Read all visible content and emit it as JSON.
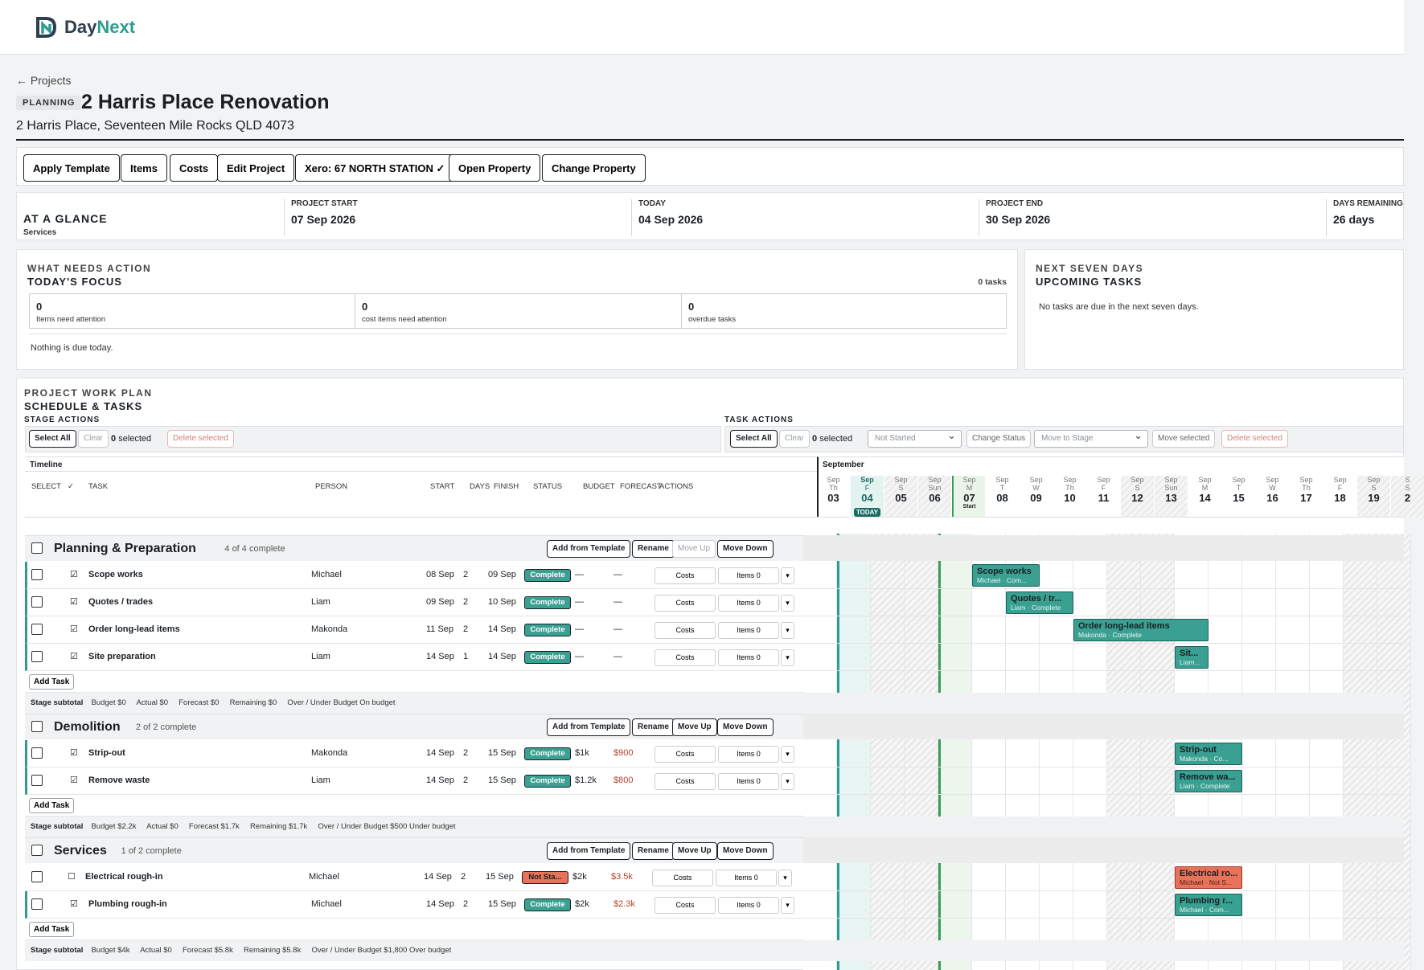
{
  "brand": {
    "name_a": "Day",
    "name_b": "Next"
  },
  "breadcrumb": "← Projects",
  "project": {
    "status_badge": "PLANNING",
    "title": "2 Harris Place Renovation",
    "address": "2 Harris Place, Seventeen Mile Rocks QLD 4073"
  },
  "toolbar": {
    "apply_template": "Apply Template",
    "items": "Items",
    "costs": "Costs",
    "edit_project": "Edit Project",
    "xero": "Xero: 67 NORTH STATION ✓",
    "open_property": "Open Property",
    "change_property": "Change Property"
  },
  "glance": {
    "title": "AT A GLANCE",
    "subtitle": "Services",
    "start_label": "PROJECT START",
    "start_value": "07 Sep 2026",
    "today_label": "TODAY",
    "today_value": "04 Sep 2026",
    "end_label": "PROJECT END",
    "end_value": "30 Sep 2026",
    "remaining_label": "DAYS REMAINING",
    "remaining_value": "26 days"
  },
  "focus": {
    "eyebrow": "WHAT NEEDS ACTION",
    "title": "TODAY'S FOCUS",
    "count": "0 tasks",
    "stat1_value": "0",
    "stat1_label": "Items need attention",
    "stat2_value": "0",
    "stat2_label": "cost items need attention",
    "stat3_value": "0",
    "stat3_label": "overdue tasks",
    "empty": "Nothing is due today."
  },
  "upcoming": {
    "eyebrow": "NEXT SEVEN DAYS",
    "title": "UPCOMING TASKS",
    "empty": "No tasks are due in the next seven days."
  },
  "plan": {
    "eyebrow": "PROJECT WORK PLAN",
    "title": "SCHEDULE & TASKS",
    "stage_actions": "STAGE ACTIONS",
    "task_actions": "TASK ACTIONS",
    "select_all": "Select All",
    "clear": "Clear",
    "selected_count": "0",
    "selected_word": "selected",
    "delete_selected": "Delete selected",
    "status_select": "Not Started",
    "change_status": "Change Status",
    "stage_select": "Move to Stage",
    "move_selected": "Move selected"
  },
  "table_headers": {
    "timeline": "Timeline",
    "select": "SELECT",
    "check": "✓",
    "task": "TASK",
    "person": "PERSON",
    "start": "START",
    "days": "DAYS",
    "finish": "FINISH",
    "status": "STATUS",
    "budget": "BUDGET",
    "forecast": "FORECAST",
    "actions": "ACTIONS"
  },
  "timeline": {
    "month": "September",
    "days": [
      {
        "m": "Sep",
        "w": "Th",
        "d": "03"
      },
      {
        "m": "Sep",
        "w": "F",
        "d": "04",
        "tag": "TODAY"
      },
      {
        "m": "Sep",
        "w": "S",
        "d": "05"
      },
      {
        "m": "Sep",
        "w": "Sun",
        "d": "06"
      },
      {
        "m": "Sep",
        "w": "M",
        "d": "07",
        "tag": "Start"
      },
      {
        "m": "Sep",
        "w": "T",
        "d": "08"
      },
      {
        "m": "Sep",
        "w": "W",
        "d": "09"
      },
      {
        "m": "Sep",
        "w": "Th",
        "d": "10"
      },
      {
        "m": "Sep",
        "w": "F",
        "d": "11"
      },
      {
        "m": "Sep",
        "w": "S",
        "d": "12"
      },
      {
        "m": "Sep",
        "w": "Sun",
        "d": "13"
      },
      {
        "m": "Sep",
        "w": "M",
        "d": "14"
      },
      {
        "m": "Sep",
        "w": "T",
        "d": "15"
      },
      {
        "m": "Sep",
        "w": "W",
        "d": "16"
      },
      {
        "m": "Sep",
        "w": "Th",
        "d": "17"
      },
      {
        "m": "Sep",
        "w": "F",
        "d": "18"
      },
      {
        "m": "Sep",
        "w": "S",
        "d": "19"
      },
      {
        "m": "S",
        "w": "S",
        "d": "2"
      }
    ]
  },
  "buttons": {
    "add_from_template": "Add from Template",
    "rename": "Rename",
    "move_up": "Move Up",
    "move_down": "Move Down",
    "add_task": "Add Task",
    "costs": "Costs",
    "items": "Items 0",
    "more": "▾"
  },
  "stages": [
    {
      "name": "Planning & Preparation",
      "progress": "4 of 4 complete",
      "subtotal": {
        "label": "Stage subtotal",
        "text": "Budget $0     Actual $0     Forecast $0     Remaining $0     Over / Under Budget On budget"
      },
      "tasks": [
        {
          "name": "Scope works",
          "person": "Michael",
          "start": "08 Sep",
          "days": "2",
          "finish": "09 Sep",
          "status": "Complete",
          "budget": "—",
          "forecast": "—",
          "bar_title": "Scope works",
          "bar_sub": "Michael · Com..."
        },
        {
          "name": "Quotes / trades",
          "person": "Liam",
          "start": "09 Sep",
          "days": "2",
          "finish": "10 Sep",
          "status": "Complete",
          "budget": "—",
          "forecast": "—",
          "bar_title": "Quotes / tr...",
          "bar_sub": "Liam · Complete"
        },
        {
          "name": "Order long-lead items",
          "person": "Makonda",
          "start": "11 Sep",
          "days": "2",
          "finish": "14 Sep",
          "status": "Complete",
          "budget": "—",
          "forecast": "—",
          "bar_title": "Order long-lead items",
          "bar_sub": "Makonda · Complete"
        },
        {
          "name": "Site preparation",
          "person": "Liam",
          "start": "14 Sep",
          "days": "1",
          "finish": "14 Sep",
          "status": "Complete",
          "budget": "—",
          "forecast": "—",
          "bar_title": "Sit...",
          "bar_sub": "Liam..."
        }
      ]
    },
    {
      "name": "Demolition",
      "progress": "2 of 2 complete",
      "subtotal": {
        "label": "Stage subtotal",
        "text": "Budget $2.2k     Actual $0     Forecast $1.7k     Remaining $1.7k     Over / Under Budget $500 Under budget"
      },
      "tasks": [
        {
          "name": "Strip-out",
          "person": "Makonda",
          "start": "14 Sep",
          "days": "2",
          "finish": "15 Sep",
          "status": "Complete",
          "budget": "$1k",
          "forecast": "$900",
          "bar_title": "Strip-out",
          "bar_sub": "Makonda · Co..."
        },
        {
          "name": "Remove waste",
          "person": "Liam",
          "start": "14 Sep",
          "days": "2",
          "finish": "15 Sep",
          "status": "Complete",
          "budget": "$1.2k",
          "forecast": "$800",
          "bar_title": "Remove wa...",
          "bar_sub": "Liam · Complete"
        }
      ]
    },
    {
      "name": "Services",
      "progress": "1 of 2 complete",
      "subtotal": {
        "label": "Stage subtotal",
        "text": "Budget $4k     Actual $0     Forecast $5.8k     Remaining $5.8k     Over / Under Budget $1,800 Over budget"
      },
      "tasks": [
        {
          "name": "Electrical rough-in",
          "person": "Michael",
          "start": "14 Sep",
          "days": "2",
          "finish": "15 Sep",
          "status": "Not Sta...",
          "budget": "$2k",
          "forecast": "$3.5k",
          "bar_title": "Electrical ro...",
          "bar_sub": "Michael · Not S..."
        },
        {
          "name": "Plumbing rough-in",
          "person": "Michael",
          "start": "14 Sep",
          "days": "2",
          "finish": "15 Sep",
          "status": "Complete",
          "budget": "$2k",
          "forecast": "$2.3k",
          "bar_title": "Plumbing r...",
          "bar_sub": "Michael · Com..."
        }
      ]
    }
  ],
  "colors": {
    "teal": "#3aa092",
    "coral": "#e8735a",
    "today": "#1b6b63"
  }
}
